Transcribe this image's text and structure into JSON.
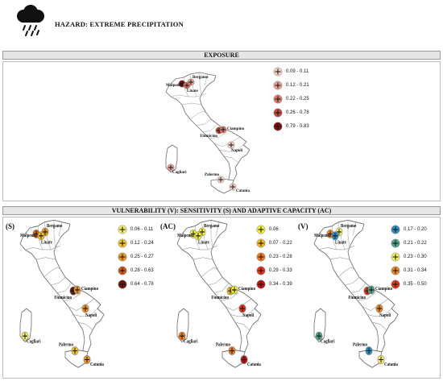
{
  "header": {
    "title": "HAZARD: EXTREME PRECIPITATION",
    "icon": "cloud-rain-icon"
  },
  "exposure": {
    "heading": "EXPOSURE",
    "legend": [
      {
        "label": "0.09 - 0.11",
        "color": "#f4cfc6"
      },
      {
        "label": "0.12 - 0.21",
        "color": "#e8a193"
      },
      {
        "label": "0.22 - 0.25",
        "color": "#d9776a"
      },
      {
        "label": "0.26 - 0.78",
        "color": "#c04a3f"
      },
      {
        "label": "0.79 - 0.83",
        "color": "#7d1310"
      }
    ],
    "airports": [
      {
        "name": "Malpensa",
        "color": "#7d1310"
      },
      {
        "name": "Bergamo",
        "color": "#e8a193"
      },
      {
        "name": "Linate",
        "color": "#d9776a"
      },
      {
        "name": "Fiumicino",
        "color": "#c04a3f"
      },
      {
        "name": "Ciampino",
        "color": "#d9776a"
      },
      {
        "name": "Napoli",
        "color": "#f4cfc6"
      },
      {
        "name": "Cagliari",
        "color": "#e8a193"
      },
      {
        "name": "Palermo",
        "color": "#f4cfc6"
      },
      {
        "name": "Catania",
        "color": "#f4cfc6"
      }
    ]
  },
  "vulnerability": {
    "heading": "VULNERABILITY (V): SENSITIVITY (S) AND ADAPTIVE CAPACITY (AC)",
    "panels": [
      {
        "label": "(S)",
        "legend": [
          {
            "label": "0.06 - 0.11",
            "color": "#f2ee6a"
          },
          {
            "label": "0.12 - 0.24",
            "color": "#f0c22a"
          },
          {
            "label": "0.25 - 0.27",
            "color": "#e8982a"
          },
          {
            "label": "0.28 - 0.63",
            "color": "#d0601c"
          },
          {
            "label": "0.64 - 0.78",
            "color": "#6e1a10"
          }
        ],
        "airports": [
          {
            "name": "Malpensa",
            "color": "#d0601c"
          },
          {
            "name": "Bergamo",
            "color": "#e8982a"
          },
          {
            "name": "Linate",
            "color": "#f0c22a"
          },
          {
            "name": "Fiumicino",
            "color": "#6e1a10"
          },
          {
            "name": "Ciampino",
            "color": "#e8982a"
          },
          {
            "name": "Napoli",
            "color": "#e8982a"
          },
          {
            "name": "Cagliari",
            "color": "#f2ee6a"
          },
          {
            "name": "Palermo",
            "color": "#f0c22a"
          },
          {
            "name": "Catania",
            "color": "#e8982a"
          }
        ]
      },
      {
        "label": "(AC)",
        "legend": [
          {
            "label": "0.06",
            "color": "#f2ee3a"
          },
          {
            "label": "0.07 - 0.22",
            "color": "#f2b51e"
          },
          {
            "label": "0.23 - 0.28",
            "color": "#ea7a1e"
          },
          {
            "label": "0.29 - 0.33",
            "color": "#e03a1c"
          },
          {
            "label": "0.34 - 0.39",
            "color": "#c01414"
          }
        ],
        "airports": [
          {
            "name": "Malpensa",
            "color": "#f2ee3a"
          },
          {
            "name": "Bergamo",
            "color": "#f2ee3a"
          },
          {
            "name": "Linate",
            "color": "#f2ee3a"
          },
          {
            "name": "Fiumicino",
            "color": "#f2b51e"
          },
          {
            "name": "Ciampino",
            "color": "#f2ee3a"
          },
          {
            "name": "Napoli",
            "color": "#e03a1c"
          },
          {
            "name": "Cagliari",
            "color": "#ea7a1e"
          },
          {
            "name": "Palermo",
            "color": "#ea7a1e"
          },
          {
            "name": "Catania",
            "color": "#c01414"
          }
        ]
      },
      {
        "label": "(V)",
        "legend": [
          {
            "label": "0.17 - 0.20",
            "color": "#2c8fc9"
          },
          {
            "label": "0.21 - 0.22",
            "color": "#4ea68a"
          },
          {
            "label": "0.23 - 0.30",
            "color": "#f2ee6a"
          },
          {
            "label": "0.31 - 0.34",
            "color": "#ea8a2a"
          },
          {
            "label": "0.35 - 0.50",
            "color": "#e03a1c"
          }
        ],
        "airports": [
          {
            "name": "Malpensa",
            "color": "#ea8a2a"
          },
          {
            "name": "Bergamo",
            "color": "#f2ee6a"
          },
          {
            "name": "Linate",
            "color": "#2c8fc9"
          },
          {
            "name": "Fiumicino",
            "color": "#e03a1c"
          },
          {
            "name": "Ciampino",
            "color": "#4ea68a"
          },
          {
            "name": "Napoli",
            "color": "#ea8a2a"
          },
          {
            "name": "Cagliari",
            "color": "#4ea68a"
          },
          {
            "name": "Palermo",
            "color": "#2c8fc9"
          },
          {
            "name": "Catania",
            "color": "#f2ee6a"
          }
        ]
      }
    ]
  }
}
